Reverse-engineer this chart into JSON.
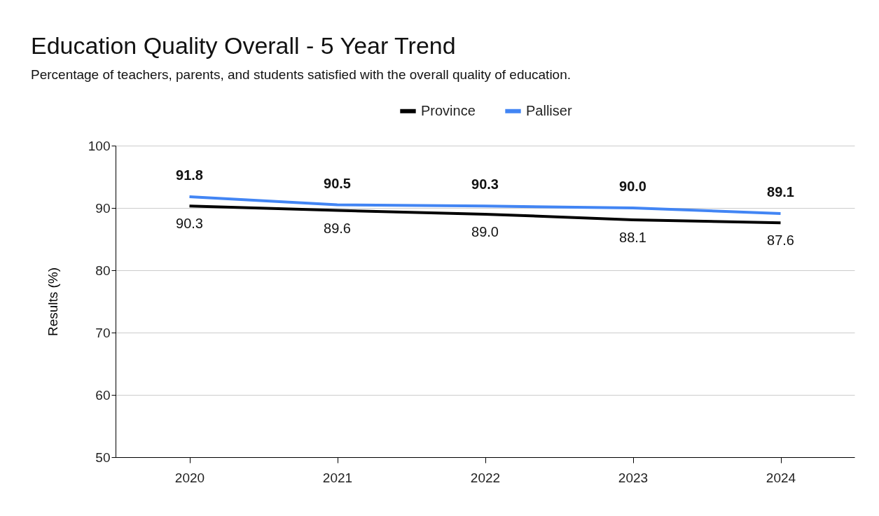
{
  "chart_data": {
    "type": "line",
    "title": "Education Quality Overall - 5 Year Trend",
    "subtitle": "Percentage of teachers, parents, and students satisfied with the overall quality of education.",
    "ylabel": "Results (%)",
    "categories": [
      "2020",
      "2021",
      "2022",
      "2023",
      "2024"
    ],
    "series": [
      {
        "name": "Province",
        "color": "#000000",
        "values": [
          90.3,
          89.6,
          89.0,
          88.1,
          87.6
        ],
        "value_labels": [
          "90.3",
          "89.6",
          "89.0",
          "88.1",
          "87.6"
        ]
      },
      {
        "name": "Palliser",
        "color": "#4285f4",
        "values": [
          91.8,
          90.5,
          90.3,
          90.0,
          89.1
        ],
        "value_labels": [
          "91.8",
          "90.5",
          "90.3",
          "90.0",
          "89.1"
        ]
      }
    ],
    "ylim": [
      50,
      100
    ],
    "yticks": [
      50,
      60,
      70,
      80,
      90,
      100
    ],
    "grid": "y",
    "legend": "top",
    "marker": "none",
    "line_style": "solid"
  }
}
